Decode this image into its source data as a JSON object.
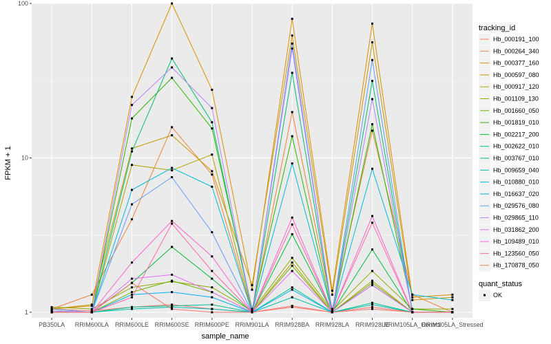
{
  "chart_data": {
    "type": "line",
    "xlabel": "sample_name",
    "ylabel": "FPKM + 1",
    "y_scale": "log10",
    "ylim": [
      0.92,
      100
    ],
    "y_ticks": [
      "1",
      "10",
      "100"
    ],
    "grid": true,
    "legend_position": "right",
    "categories": [
      "PB350LA",
      "RRIM600LA",
      "RRIM600LE",
      "RRIM600SE",
      "RRIM600PE",
      "RRIM901LA",
      "RRIM928BA",
      "RRIM928LA",
      "RRIM928LE",
      "RRIM105LA_Control",
      "RRIM105LA_Stressed"
    ],
    "legend_title": "tracking_id",
    "shape_legend_title": "quant_status",
    "shape_legend_items": [
      "OK"
    ],
    "series": [
      {
        "name": "Hb_000191_100",
        "color": "#F8766D",
        "values": [
          1.05,
          1.02,
          1.08,
          1.12,
          1.05,
          1.0,
          1.1,
          1.0,
          1.08,
          1.0,
          1.0
        ]
      },
      {
        "name": "Hb_000264_340",
        "color": "#EC8239",
        "values": [
          1.05,
          1.3,
          4.0,
          15.8,
          7.8,
          1.0,
          19.8,
          1.05,
          15.0,
          1.3,
          1.0
        ]
      },
      {
        "name": "Hb_000377_160",
        "color": "#DB8E00",
        "values": [
          1.05,
          1.1,
          24.8,
          100,
          27.6,
          1.4,
          79.5,
          1.38,
          74.0,
          1.25,
          1.3
        ]
      },
      {
        "name": "Hb_000597_080",
        "color": "#C79800",
        "values": [
          1.05,
          1.12,
          11.5,
          14.0,
          8.2,
          1.5,
          62.0,
          1.3,
          56.0,
          1.2,
          1.25
        ]
      },
      {
        "name": "Hb_000917_120",
        "color": "#AFA100",
        "values": [
          1.0,
          1.0,
          9.0,
          8.3,
          10.5,
          1.0,
          2.1,
          1.0,
          1.6,
          1.0,
          1.0
        ]
      },
      {
        "name": "Hb_001109_130",
        "color": "#93AA00",
        "values": [
          1.08,
          1.05,
          1.45,
          1.58,
          1.45,
          1.02,
          2.25,
          1.02,
          1.85,
          1.05,
          1.05
        ]
      },
      {
        "name": "Hb_001660_050",
        "color": "#6EB200",
        "values": [
          1.0,
          1.0,
          1.35,
          1.6,
          1.35,
          1.0,
          2.0,
          1.0,
          1.55,
          1.0,
          1.0
        ]
      },
      {
        "name": "Hb_001819_010",
        "color": "#2BB600",
        "values": [
          1.02,
          1.0,
          18.0,
          33.0,
          15.5,
          1.05,
          13.8,
          1.0,
          16.5,
          1.05,
          1.0
        ]
      },
      {
        "name": "Hb_002217_200",
        "color": "#00BA38",
        "values": [
          1.0,
          1.0,
          1.55,
          2.65,
          1.65,
          1.0,
          3.2,
          1.0,
          2.55,
          1.0,
          1.0
        ]
      },
      {
        "name": "Hb_002622_010",
        "color": "#00BE6C",
        "values": [
          1.0,
          1.0,
          11.0,
          44.0,
          17.0,
          1.0,
          35.5,
          1.0,
          31.5,
          1.0,
          1.0
        ]
      },
      {
        "name": "Hb_003767_010",
        "color": "#00C08B",
        "values": [
          1.0,
          1.0,
          1.08,
          1.1,
          1.12,
          1.0,
          1.45,
          1.0,
          1.15,
          1.0,
          1.0
        ]
      },
      {
        "name": "Hb_009659_040",
        "color": "#00C0AA",
        "values": [
          1.02,
          1.0,
          1.05,
          1.08,
          1.05,
          1.0,
          1.25,
          1.0,
          1.12,
          1.0,
          1.0
        ]
      },
      {
        "name": "Hb_010880_010",
        "color": "#00BCD8",
        "values": [
          1.0,
          1.0,
          6.2,
          8.6,
          6.5,
          1.0,
          9.2,
          1.0,
          8.5,
          1.3,
          1.2
        ]
      },
      {
        "name": "Hb_016637_020",
        "color": "#00B0F6",
        "values": [
          1.0,
          1.0,
          1.3,
          1.35,
          1.25,
          1.0,
          1.4,
          1.0,
          1.5,
          1.0,
          1.0
        ]
      },
      {
        "name": "Hb_029576_080",
        "color": "#619CFF",
        "values": [
          1.05,
          1.0,
          5.0,
          7.5,
          3.3,
          1.0,
          55.0,
          1.0,
          43.0,
          1.0,
          1.0
        ]
      },
      {
        "name": "Hb_029865_110",
        "color": "#B983FF",
        "values": [
          1.02,
          1.0,
          22.0,
          38.5,
          21.0,
          1.0,
          51.0,
          1.0,
          24.0,
          1.0,
          1.0
        ]
      },
      {
        "name": "Hb_031862_200",
        "color": "#E76BF3",
        "values": [
          1.0,
          1.0,
          1.65,
          1.75,
          1.35,
          1.0,
          1.85,
          1.0,
          1.5,
          1.0,
          1.0
        ]
      },
      {
        "name": "Hb_109489_010",
        "color": "#FD61D1",
        "values": [
          1.0,
          1.0,
          2.1,
          3.9,
          2.3,
          1.0,
          4.1,
          1.0,
          4.2,
          1.0,
          1.0
        ]
      },
      {
        "name": "Hb_123560_050",
        "color": "#FF67A4",
        "values": [
          1.0,
          1.0,
          1.25,
          3.75,
          1.85,
          1.0,
          3.7,
          1.0,
          3.8,
          1.0,
          1.0
        ]
      },
      {
        "name": "Hb_170878_050",
        "color": "#F8766D",
        "values": [
          1.0,
          1.0,
          1.55,
          1.05,
          1.0,
          1.0,
          1.08,
          1.0,
          1.05,
          1.0,
          1.0
        ]
      }
    ]
  }
}
